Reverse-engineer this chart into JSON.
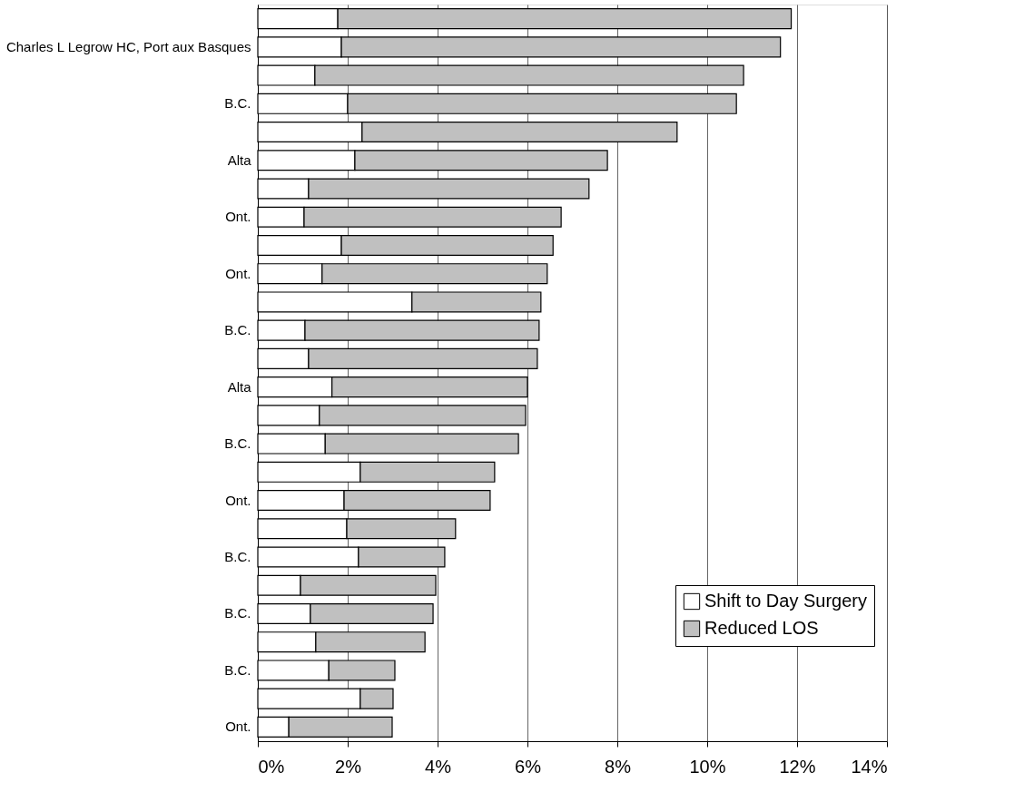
{
  "chart_data": {
    "type": "bar",
    "orientation": "horizontal",
    "stacked": true,
    "categories": [
      null,
      "Charles L Legrow HC, Port aux Basques",
      null,
      "B.C.",
      null,
      "Alta",
      null,
      "Ont.",
      null,
      "Ont.",
      null,
      "B.C.",
      null,
      "Alta",
      null,
      "B.C.",
      null,
      "Ont.",
      null,
      "B.C.",
      null,
      "B.C.",
      null,
      "B.C.",
      null,
      "Ont."
    ],
    "series": [
      {
        "name": "Shift to Day Surgery",
        "color": "#ffffff",
        "values": [
          1.78,
          1.86,
          1.27,
          2.0,
          2.32,
          2.16,
          1.13,
          1.03,
          1.86,
          1.43,
          3.43,
          1.05,
          1.13,
          1.65,
          1.37,
          1.5,
          2.28,
          1.92,
          1.98,
          2.24,
          0.95,
          1.17,
          1.29,
          1.58,
          2.28,
          0.69
        ]
      },
      {
        "name": "Reduced LOS",
        "color": "#c0c0c0",
        "values": [
          10.09,
          9.77,
          9.54,
          8.65,
          7.01,
          5.62,
          6.24,
          5.72,
          4.71,
          5.01,
          2.87,
          5.21,
          5.09,
          4.35,
          4.59,
          4.3,
          2.99,
          3.25,
          2.42,
          1.92,
          3.01,
          2.73,
          2.43,
          1.47,
          0.73,
          2.3
        ]
      }
    ],
    "xlim": [
      0,
      14
    ],
    "xticks": [
      {
        "value": 0,
        "label": "0%"
      },
      {
        "value": 2,
        "label": "2%"
      },
      {
        "value": 4,
        "label": "4%"
      },
      {
        "value": 6,
        "label": "6%"
      },
      {
        "value": 8,
        "label": "8%"
      },
      {
        "value": 10,
        "label": "10%"
      },
      {
        "value": 12,
        "label": "12%"
      },
      {
        "value": 14,
        "label": "14%"
      }
    ],
    "grid": "x",
    "legend": "bottom right"
  }
}
